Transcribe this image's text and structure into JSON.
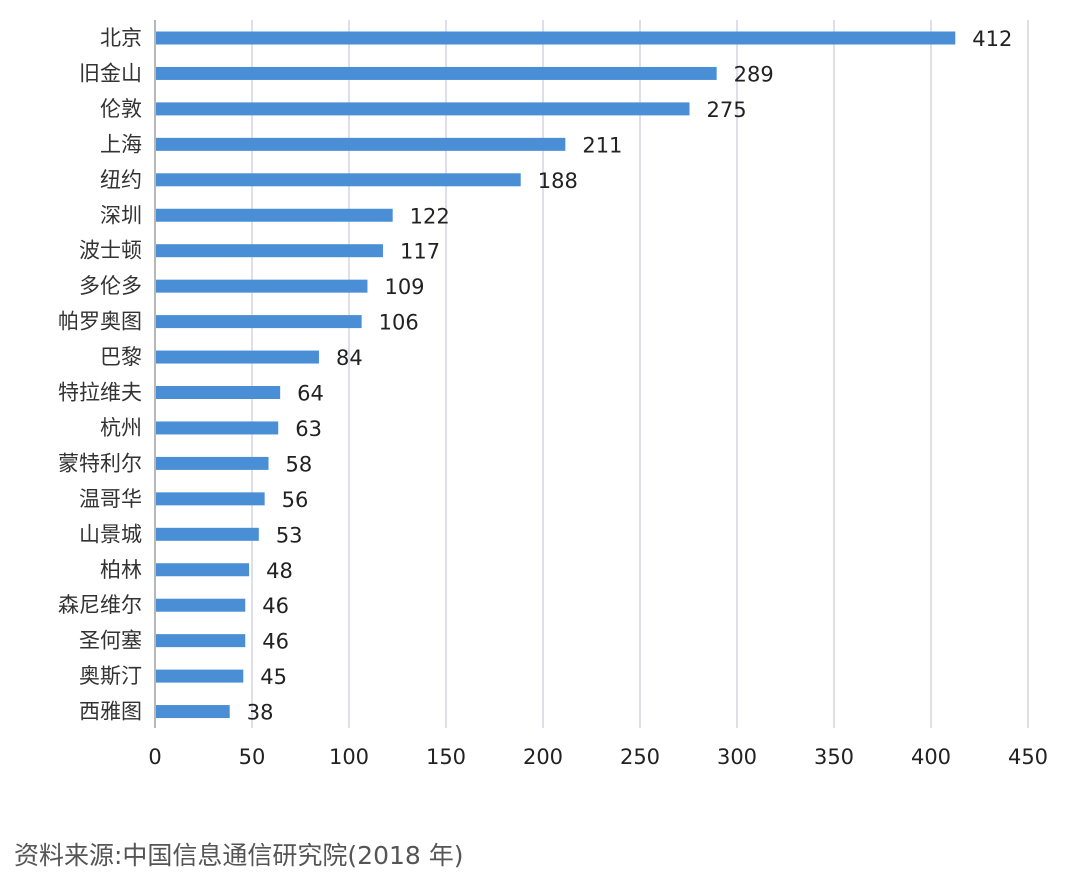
{
  "chart_data": {
    "type": "bar",
    "orientation": "horizontal",
    "categories": [
      "北京",
      "旧金山",
      "伦敦",
      "上海",
      "纽约",
      "深圳",
      "波士顿",
      "多伦多",
      "帕罗奥图",
      "巴黎",
      "特拉维夫",
      "杭州",
      "蒙特利尔",
      "温哥华",
      "山景城",
      "柏林",
      "森尼维尔",
      "圣何塞",
      "奥斯汀",
      "西雅图"
    ],
    "values": [
      412,
      289,
      275,
      211,
      188,
      122,
      117,
      109,
      106,
      84,
      64,
      63,
      58,
      56,
      53,
      48,
      46,
      46,
      45,
      38
    ],
    "value_labels": [
      "412",
      "289",
      "275",
      "211",
      "188",
      "122",
      "117",
      "109",
      "106",
      "84",
      "64",
      "63",
      "58",
      "56",
      "53",
      "48",
      "46",
      "46",
      "45",
      "38"
    ],
    "xlim": [
      0,
      450
    ],
    "x_ticks": [
      0,
      50,
      100,
      150,
      200,
      250,
      300,
      350,
      400,
      450
    ],
    "x_tick_labels": [
      "0",
      "50",
      "100",
      "150",
      "200",
      "250",
      "300",
      "350",
      "400",
      "450"
    ],
    "grid": "vertical",
    "legend": "none",
    "bar_color": "#4a8fd6",
    "grid_color": "#dde0e8"
  },
  "source": "资料来源:中国信息通信研究院(2018 年)"
}
